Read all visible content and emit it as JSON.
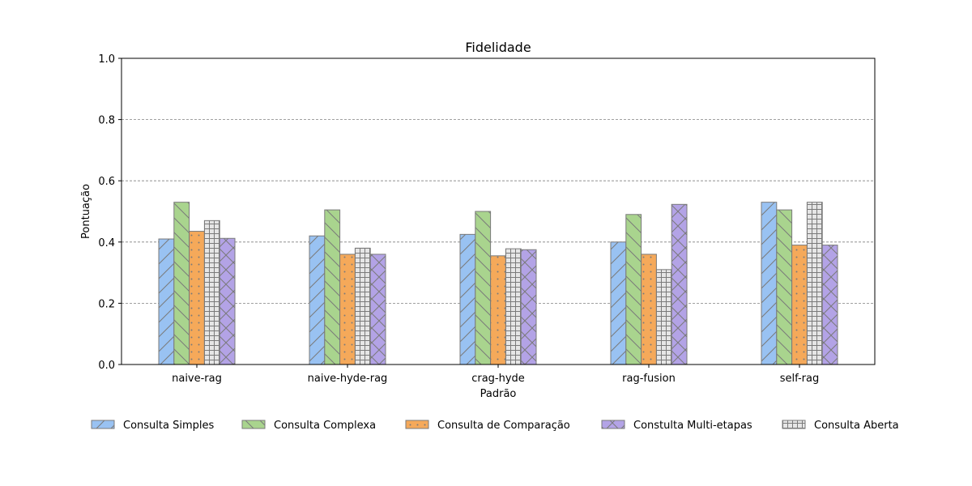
{
  "chart_data": {
    "type": "bar",
    "title": "Fidelidade",
    "xlabel": "Padrão",
    "ylabel": "Pontuação",
    "ylim": [
      0,
      1.0
    ],
    "yticks": [
      "0.0",
      "0.2",
      "0.4",
      "0.6",
      "0.8",
      "1.0"
    ],
    "grid": "horizontal dashed",
    "legend_position": "bottom",
    "categories": [
      "naive-rag",
      "naive-hyde-rag",
      "crag-hyde",
      "rag-fusion",
      "self-rag"
    ],
    "series": [
      {
        "name": "Consulta Simples",
        "color": "#99c2f2",
        "hatch": "diagonal",
        "values": [
          0.41,
          0.42,
          0.425,
          0.4,
          0.53
        ]
      },
      {
        "name": "Consulta Complexa",
        "color": "#a9d48e",
        "hatch": "back-diagonal",
        "values": [
          0.53,
          0.505,
          0.5,
          0.49,
          0.505
        ]
      },
      {
        "name": "Consulta de Comparação",
        "color": "#f5a95a",
        "hatch": "dots",
        "values": [
          0.435,
          0.36,
          0.355,
          0.36,
          0.39
        ]
      },
      {
        "name": "Consulta Aberta",
        "color": "#e6e6e6",
        "hatch": "grid",
        "values": [
          0.47,
          0.38,
          0.378,
          0.31,
          0.53
        ]
      },
      {
        "name": "Constulta Multi-etapas",
        "color": "#b3a3e6",
        "hatch": "cross",
        "values": [
          0.412,
          0.36,
          0.375,
          0.523,
          0.39
        ]
      }
    ],
    "legend_order": [
      "Consulta Simples",
      "Consulta Complexa",
      "Consulta de Comparação",
      "Constulta Multi-etapas",
      "Consulta Aberta"
    ]
  }
}
